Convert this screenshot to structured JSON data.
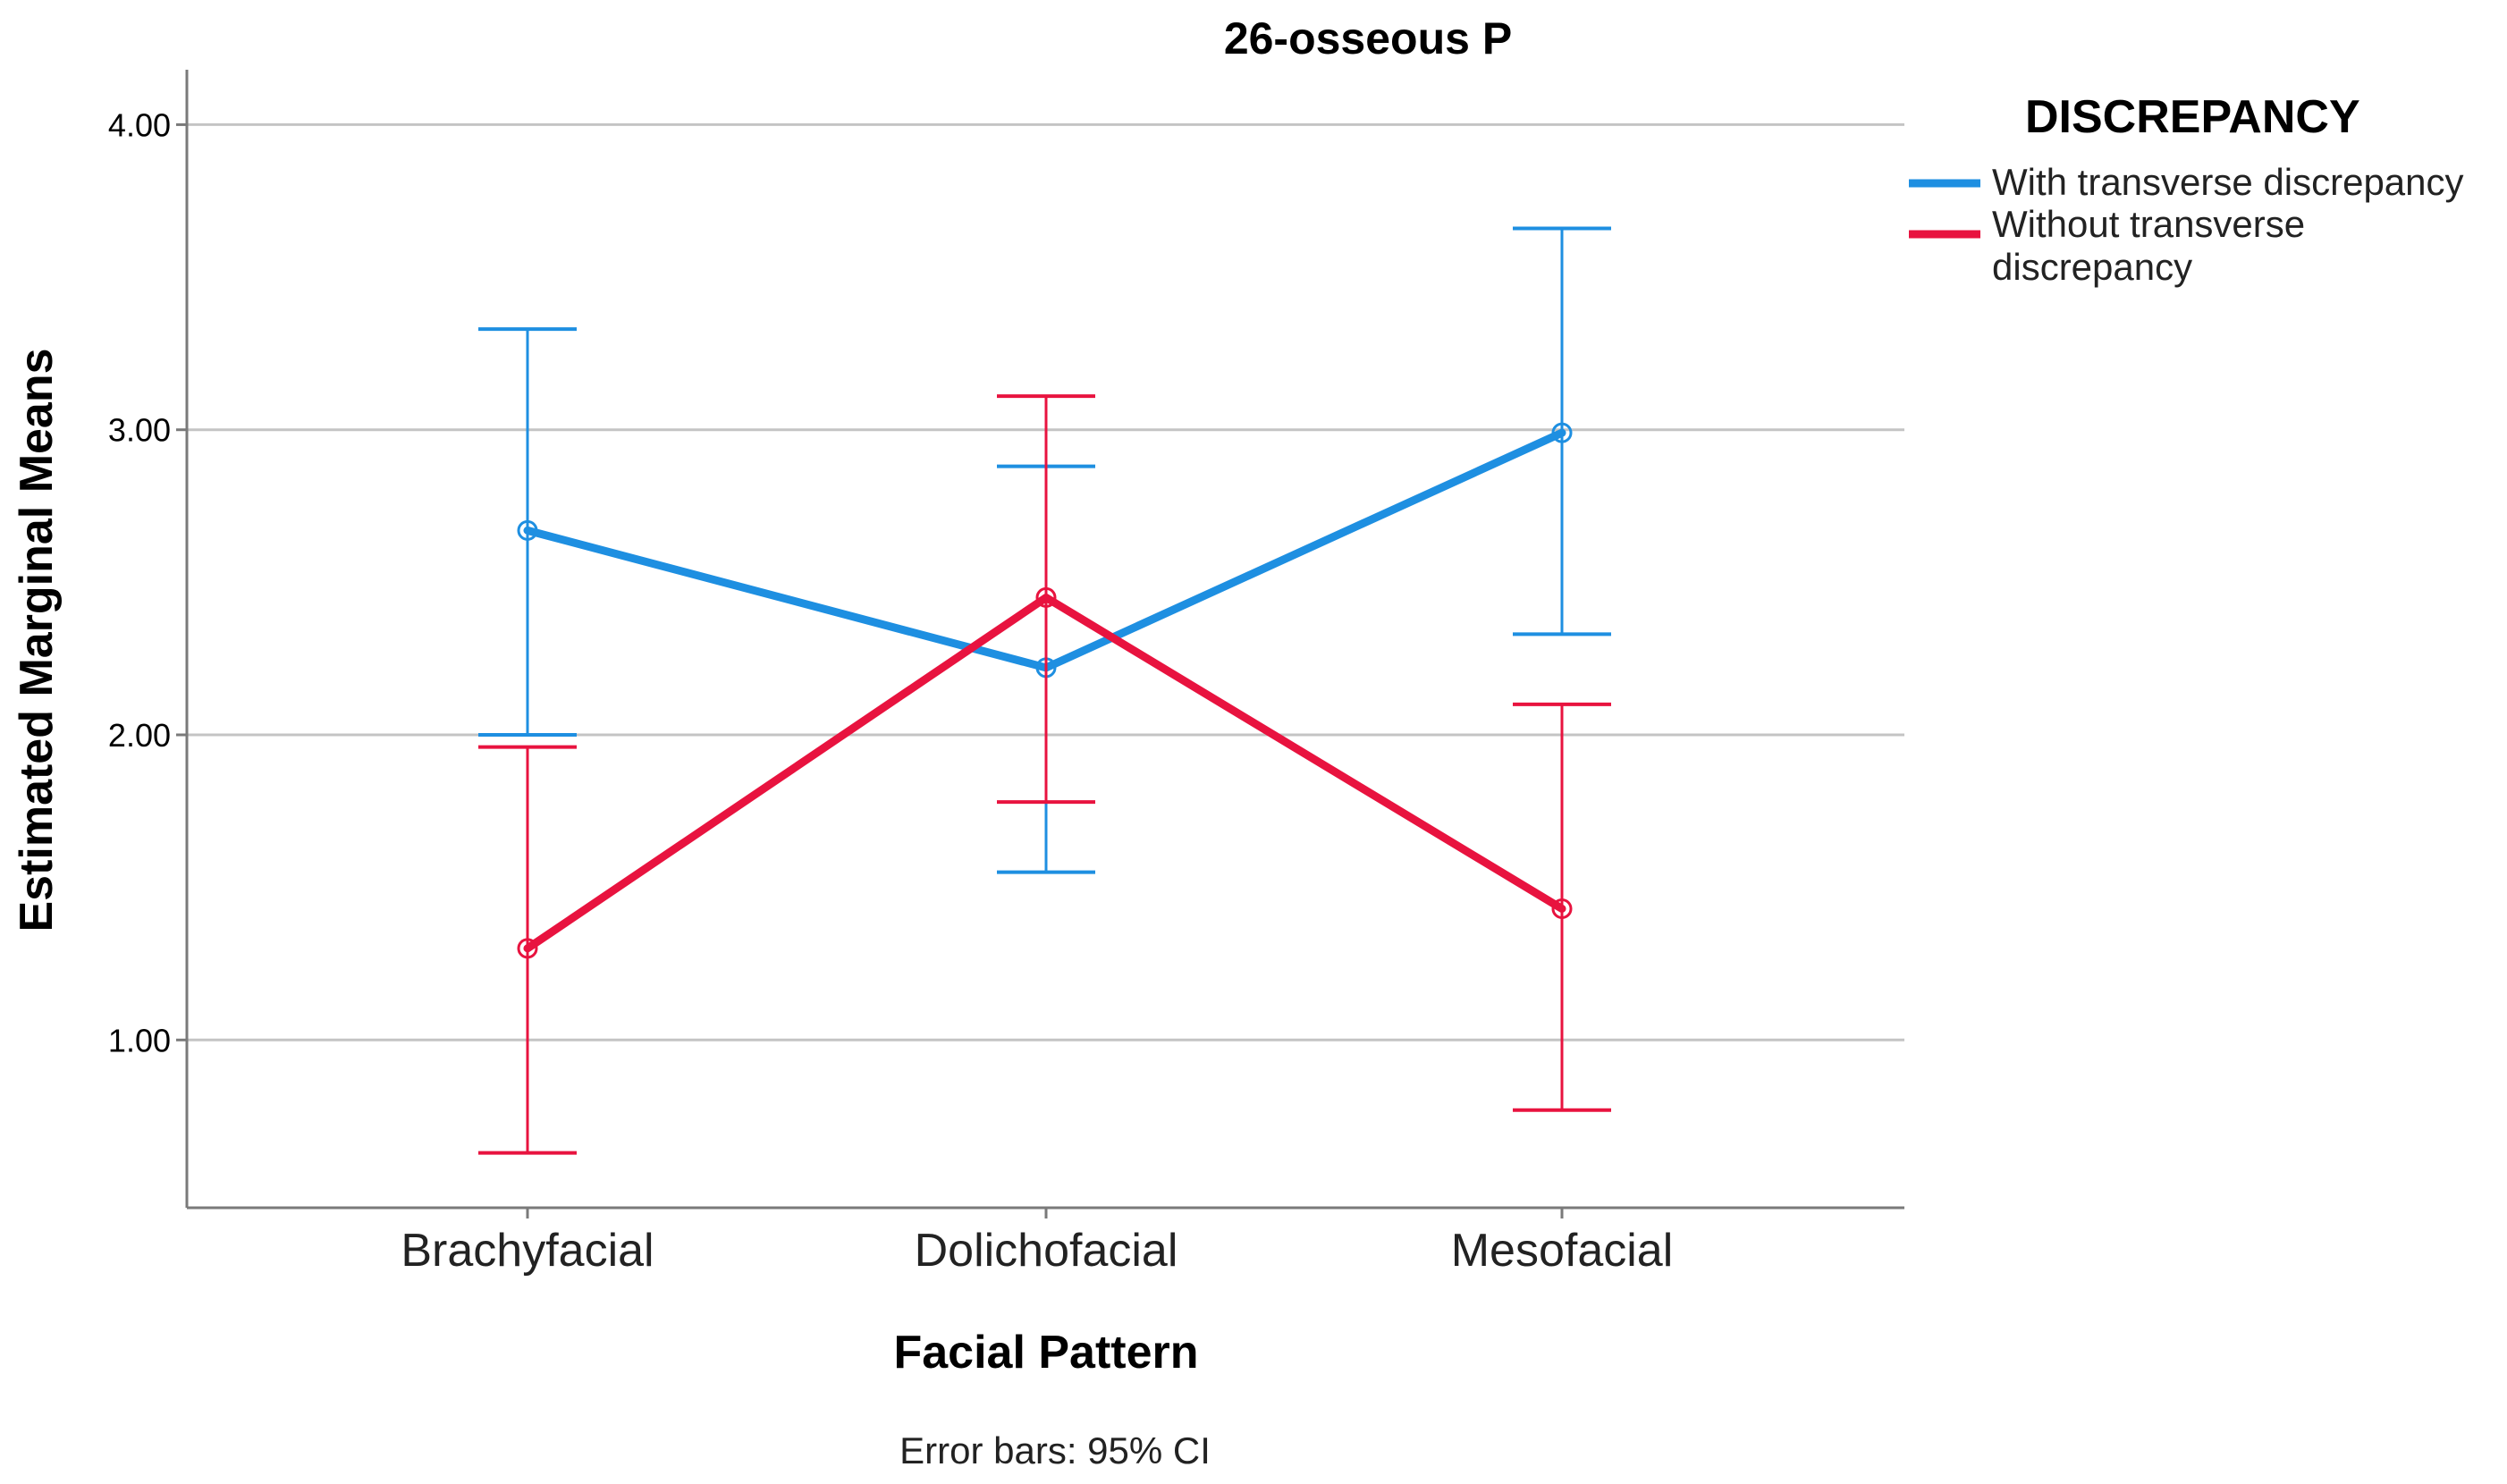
{
  "colors": {
    "with_series": "#1e8fe1",
    "without_series": "#e8133f"
  },
  "chart_data": {
    "type": "line",
    "title": "26-osseous P",
    "xlabel": "Facial Pattern",
    "ylabel": "Estimated Marginal Means",
    "categories": [
      "Brachyfacial",
      "Dolichofacial",
      "Mesofacial"
    ],
    "ylim": [
      0.45,
      4.18
    ],
    "yticks": [
      1.0,
      2.0,
      3.0,
      4.0
    ],
    "ytick_labels": [
      "1.00",
      "2.00",
      "3.00",
      "4.00"
    ],
    "grid": "horizontal",
    "legend_title": "DISCREPANCY",
    "legend_position": "top-right, outside plot",
    "note": "Error bars: 95% CI",
    "series": [
      {
        "name": "With transverse discrepancy",
        "color": "#1e8fe1",
        "values": [
          2.67,
          2.22,
          2.99
        ],
        "ci_low": [
          2.0,
          1.55,
          2.33
        ],
        "ci_high": [
          3.33,
          2.88,
          3.66
        ]
      },
      {
        "name": "Without transverse discrepancy",
        "legend_lines": [
          "Without transverse",
          "discrepancy"
        ],
        "color": "#e8133f",
        "values": [
          1.3,
          2.45,
          1.43
        ],
        "ci_low": [
          0.63,
          1.78,
          0.77
        ],
        "ci_high": [
          1.96,
          3.11,
          2.1
        ]
      }
    ]
  }
}
